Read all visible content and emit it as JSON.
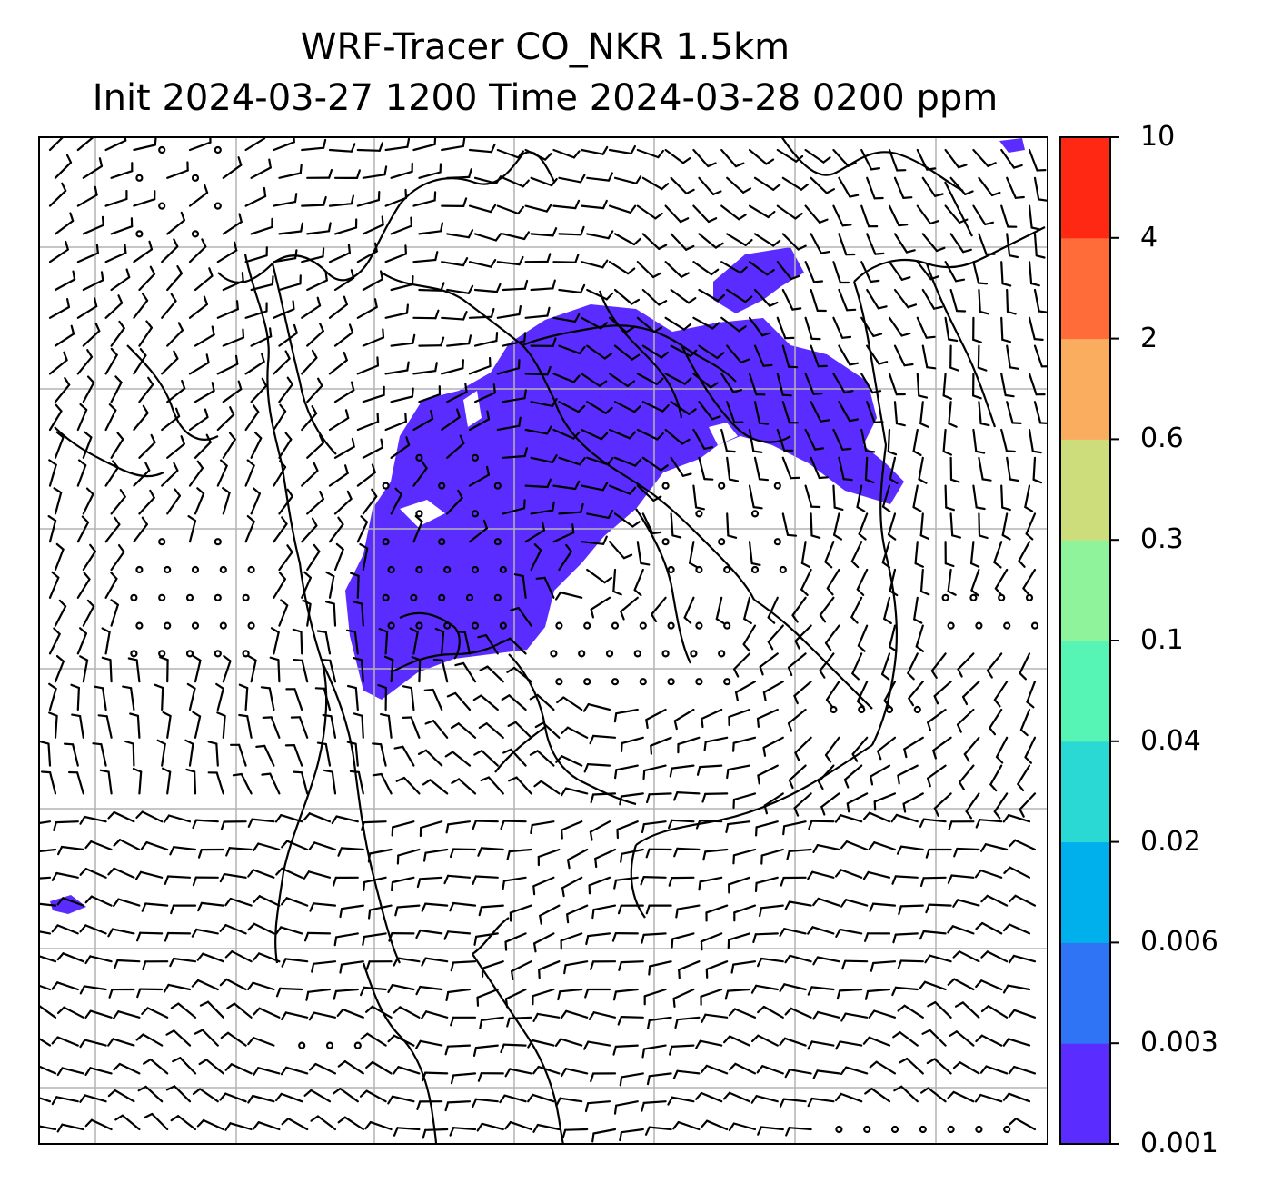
{
  "title": {
    "line1": "WRF-Tracer CO_NKR 1.5km",
    "line2": "Init 2024-03-27 1200 Time 2024-03-28 0200 ppm"
  },
  "colorbar": {
    "levels": [
      "0.001",
      "0.003",
      "0.006",
      "0.02",
      "0.04",
      "0.1",
      "0.3",
      "0.6",
      "2",
      "4",
      "10"
    ],
    "colors": [
      "#5b2cff",
      "#2f74f5",
      "#00b0ec",
      "#2ad9d3",
      "#56f5b5",
      "#8ff39b",
      "#cedd7c",
      "#fbad5f",
      "#ff6c39",
      "#ff2812"
    ]
  },
  "map": {
    "plume_color": "#5b2cff",
    "coastline_color": "#000000",
    "grid_color": "#b4b4b4"
  }
}
